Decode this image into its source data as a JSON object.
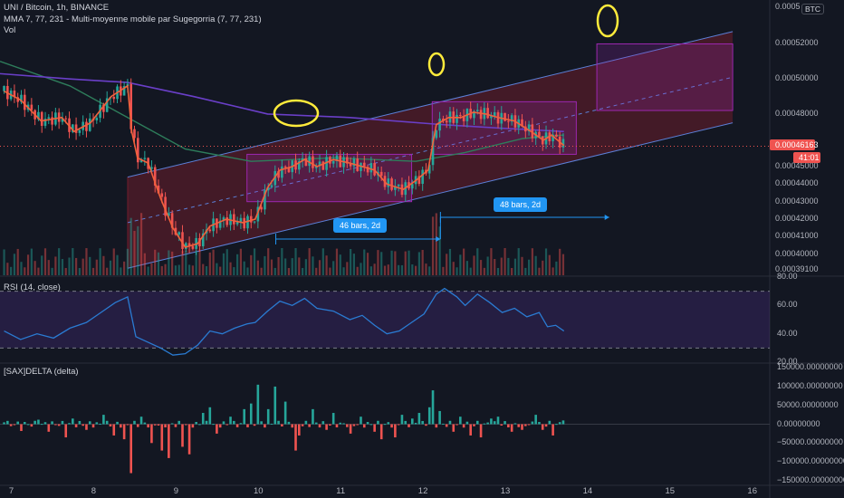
{
  "header": {
    "symbol_line": "UNI / Bitcoin, 1h, BINANCE",
    "ma_line": "MMA 7, 77, 231 - Multi-moyenne mobile par Sugegorria (7, 77, 231)",
    "vol_label": "Vol",
    "currency": "BTC"
  },
  "price_axis": {
    "labels": [
      "0.00054000",
      "0.00052000",
      "0.00050000",
      "0.00048000",
      "0.00045000",
      "0.00044000",
      "0.00043000",
      "0.00042000",
      "0.00041000",
      "0.00040000",
      "0.00039100"
    ],
    "top_clipped": "0.0005",
    "last_price": "0.00046163",
    "countdown": "41:01"
  },
  "rsi_pane": {
    "title": "RSI (14, close)",
    "labels": [
      "80.00",
      "60.00",
      "40.00",
      "20.00"
    ]
  },
  "delta_pane": {
    "title": "[SAX]DELTA (delta)",
    "labels": [
      "150000.00000000",
      "100000.00000000",
      "50000.00000000",
      "0.00000000",
      "−50000.00000000",
      "−100000.00000000",
      "−150000.00000000"
    ]
  },
  "time_axis": {
    "labels": [
      "7",
      "8",
      "9",
      "10",
      "11",
      "12",
      "13",
      "14",
      "15",
      "16"
    ]
  },
  "annotations": {
    "range1": "46 bars, 2d",
    "range2": "48 bars, 2d"
  },
  "chart_data": [
    {
      "type": "candlestick",
      "title": "UNI / Bitcoin, 1h, BINANCE",
      "x_unit": "day of month (hourly bars)",
      "xlim": [
        6.95,
        16.3
      ],
      "ylim": [
        0.000388,
        0.000544
      ],
      "close_path": [
        [
          7.0,
          0.000493
        ],
        [
          7.2,
          0.000488
        ],
        [
          7.45,
          0.000476
        ],
        [
          7.7,
          0.000478
        ],
        [
          7.85,
          0.00047
        ],
        [
          8.05,
          0.000475
        ],
        [
          8.3,
          0.00049
        ],
        [
          8.5,
          0.000496
        ],
        [
          8.55,
          0.00047
        ],
        [
          8.62,
          0.000455
        ],
        [
          8.75,
          0.000452
        ],
        [
          8.9,
          0.000432
        ],
        [
          9.05,
          0.000415
        ],
        [
          9.2,
          0.000404
        ],
        [
          9.35,
          0.000406
        ],
        [
          9.5,
          0.000416
        ],
        [
          9.7,
          0.00042
        ],
        [
          9.9,
          0.000418
        ],
        [
          10.05,
          0.00042
        ],
        [
          10.2,
          0.000438
        ],
        [
          10.35,
          0.000448
        ],
        [
          10.5,
          0.00045
        ],
        [
          10.65,
          0.000454
        ],
        [
          10.8,
          0.00045
        ],
        [
          11.0,
          0.000454
        ],
        [
          11.2,
          0.000452
        ],
        [
          11.35,
          0.00045
        ],
        [
          11.5,
          0.000448
        ],
        [
          11.65,
          0.00044
        ],
        [
          11.85,
          0.000437
        ],
        [
          12.0,
          0.000442
        ],
        [
          12.15,
          0.000448
        ],
        [
          12.25,
          0.000474
        ],
        [
          12.4,
          0.000478
        ],
        [
          12.55,
          0.000478
        ],
        [
          12.7,
          0.000481
        ],
        [
          12.85,
          0.00048
        ],
        [
          13.0,
          0.000478
        ],
        [
          13.2,
          0.000476
        ],
        [
          13.4,
          0.00047
        ],
        [
          13.55,
          0.000465
        ],
        [
          13.65,
          0.000468
        ],
        [
          13.8,
          0.000462
        ]
      ],
      "moving_averages": [
        {
          "name": "MA 7",
          "color": "#f0623c"
        },
        {
          "name": "MA 77",
          "color": "#2e7d5b"
        },
        {
          "name": "MA 231",
          "color": "#6a3fc8"
        }
      ],
      "last_price": 0.00046163,
      "channel": {
        "lower": [
          [
            8.5,
            0.000392
          ],
          [
            15.85,
            0.000475
          ]
        ],
        "width": 5.2e-05
      },
      "boxes": [
        {
          "x": [
            9.95,
            11.95
          ],
          "y": [
            0.00043,
            0.000457
          ]
        },
        {
          "x": [
            12.2,
            13.95
          ],
          "y": [
            0.000457,
            0.000487
          ]
        },
        {
          "x": [
            14.2,
            15.85
          ],
          "y": [
            0.000482,
            0.00052
          ]
        }
      ],
      "ranges": [
        {
          "label": "46 bars, 2d",
          "from": 10.3,
          "to": 12.3
        },
        {
          "label": "48 bars, 2d",
          "from": 12.3,
          "to": 14.35
        }
      ]
    },
    {
      "type": "line",
      "title": "RSI (14, close)",
      "ylim": [
        20,
        80
      ],
      "bands": [
        30,
        70
      ],
      "series": [
        {
          "color": "#2a7bd2",
          "points": [
            [
              7.0,
              42
            ],
            [
              7.2,
              36
            ],
            [
              7.4,
              40
            ],
            [
              7.6,
              37
            ],
            [
              7.8,
              44
            ],
            [
              8.0,
              48
            ],
            [
              8.2,
              56
            ],
            [
              8.35,
              62
            ],
            [
              8.5,
              66
            ],
            [
              8.6,
              38
            ],
            [
              8.75,
              34
            ],
            [
              8.9,
              30
            ],
            [
              9.05,
              25
            ],
            [
              9.2,
              26
            ],
            [
              9.35,
              32
            ],
            [
              9.5,
              42
            ],
            [
              9.65,
              40
            ],
            [
              9.8,
              44
            ],
            [
              9.95,
              47
            ],
            [
              10.05,
              48
            ],
            [
              10.2,
              56
            ],
            [
              10.35,
              63
            ],
            [
              10.5,
              60
            ],
            [
              10.65,
              65
            ],
            [
              10.8,
              58
            ],
            [
              11.0,
              56
            ],
            [
              11.2,
              50
            ],
            [
              11.35,
              53
            ],
            [
              11.5,
              46
            ],
            [
              11.65,
              40
            ],
            [
              11.8,
              42
            ],
            [
              11.95,
              48
            ],
            [
              12.1,
              54
            ],
            [
              12.25,
              68
            ],
            [
              12.35,
              72
            ],
            [
              12.5,
              66
            ],
            [
              12.6,
              60
            ],
            [
              12.75,
              68
            ],
            [
              12.9,
              62
            ],
            [
              13.05,
              55
            ],
            [
              13.2,
              58
            ],
            [
              13.35,
              52
            ],
            [
              13.5,
              55
            ],
            [
              13.6,
              45
            ],
            [
              13.7,
              46
            ],
            [
              13.8,
              42
            ]
          ]
        }
      ]
    },
    {
      "type": "bar",
      "title": "[SAX]DELTA (delta)",
      "ylim": [
        -160000,
        160000
      ],
      "series": [
        {
          "positive_color": "#26a69a",
          "negative_color": "#ef5350",
          "points": [
            [
              7.0,
              5000
            ],
            [
              7.2,
              -18000
            ],
            [
              7.4,
              12000
            ],
            [
              7.55,
              -20000
            ],
            [
              7.75,
              -35000
            ],
            [
              7.85,
              15000
            ],
            [
              8.0,
              -15000
            ],
            [
              8.2,
              25000
            ],
            [
              8.35,
              -30000
            ],
            [
              8.45,
              -40000
            ],
            [
              8.55,
              -130000
            ],
            [
              8.65,
              20000
            ],
            [
              8.8,
              -50000
            ],
            [
              8.9,
              -70000
            ],
            [
              9.0,
              -90000
            ],
            [
              9.15,
              -60000
            ],
            [
              9.25,
              -80000
            ],
            [
              9.4,
              30000
            ],
            [
              9.5,
              45000
            ],
            [
              9.6,
              -25000
            ],
            [
              9.75,
              20000
            ],
            [
              9.9,
              40000
            ],
            [
              10.0,
              55000
            ],
            [
              10.1,
              105000
            ],
            [
              10.2,
              40000
            ],
            [
              10.3,
              100000
            ],
            [
              10.4,
              60000
            ],
            [
              10.55,
              -70000
            ],
            [
              10.6,
              -30000
            ],
            [
              10.75,
              40000
            ],
            [
              10.9,
              -15000
            ],
            [
              11.0,
              30000
            ],
            [
              11.2,
              -25000
            ],
            [
              11.35,
              20000
            ],
            [
              11.5,
              -20000
            ],
            [
              11.6,
              -40000
            ],
            [
              11.75,
              -35000
            ],
            [
              11.85,
              25000
            ],
            [
              11.95,
              15000
            ],
            [
              12.05,
              30000
            ],
            [
              12.15,
              45000
            ],
            [
              12.2,
              90000
            ],
            [
              12.3,
              35000
            ],
            [
              12.45,
              -20000
            ],
            [
              12.55,
              20000
            ],
            [
              12.65,
              -30000
            ],
            [
              12.8,
              -35000
            ],
            [
              12.9,
              15000
            ],
            [
              13.0,
              20000
            ],
            [
              13.15,
              -20000
            ],
            [
              13.3,
              -15000
            ],
            [
              13.45,
              25000
            ],
            [
              13.55,
              -15000
            ],
            [
              13.65,
              -30000
            ],
            [
              13.8,
              10000
            ]
          ]
        }
      ]
    }
  ]
}
